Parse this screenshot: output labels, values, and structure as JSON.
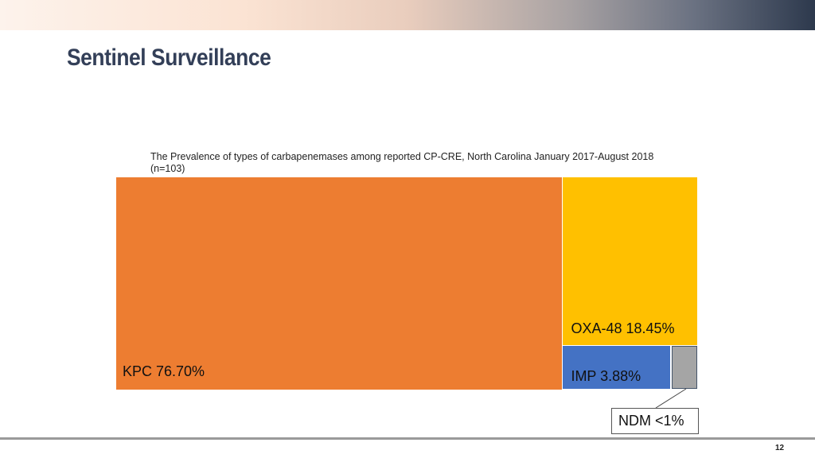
{
  "slide": {
    "title": "Sentinel Surveillance",
    "page_number": "12"
  },
  "chart_data": {
    "type": "treemap",
    "title": "The Prevalence of types of carbapenemases among reported CP-CRE, North Carolina January 2017-August 2018",
    "subtitle": "(n=103)",
    "items": [
      {
        "name": "KPC",
        "value": 76.7,
        "label": "KPC 76.70%",
        "color": "#ed7d31"
      },
      {
        "name": "OXA-48",
        "value": 18.45,
        "label": "OXA-48 18.45%",
        "color": "#ffc000"
      },
      {
        "name": "IMP",
        "value": 3.88,
        "label": "IMP 3.88%",
        "color": "#4472c4"
      },
      {
        "name": "NDM",
        "value": 0.97,
        "label": "NDM <1%",
        "color": "#a5a5a5"
      }
    ]
  }
}
